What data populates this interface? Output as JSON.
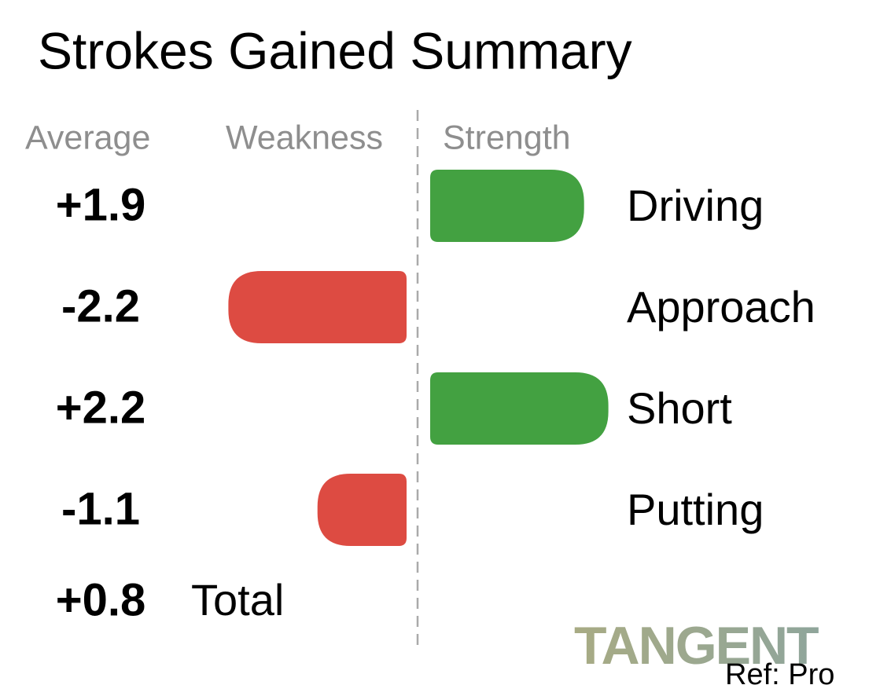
{
  "chart_data": {
    "type": "bar",
    "orientation": "horizontal",
    "title": "Strokes Gained Summary",
    "headers": [
      "Average",
      "Weakness",
      "Strength"
    ],
    "categories": [
      "Driving",
      "Approach",
      "Short",
      "Putting"
    ],
    "values": [
      1.9,
      -2.2,
      2.2,
      -1.1
    ],
    "value_labels": [
      "+1.9",
      "-2.2",
      "+2.2",
      "-1.1"
    ],
    "positive_color": "#43a141",
    "negative_color": "#dd4b42",
    "total": {
      "label": "Total",
      "value": 0.8,
      "value_label": "+0.8"
    },
    "brand": "TANGENT",
    "reference": "Ref: Pro"
  }
}
